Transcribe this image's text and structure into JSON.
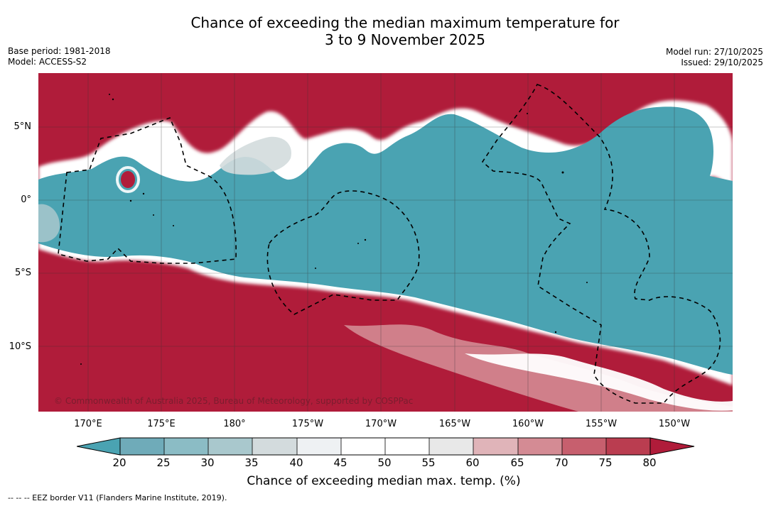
{
  "title": {
    "line1": "Chance of exceeding the median maximum temperature for",
    "line2": "3 to 9 November 2025"
  },
  "meta_left": {
    "base_period": "Base period: 1981-2018",
    "model": "Model: ACCESS-S2"
  },
  "meta_right": {
    "model_run": "Model run: 27/10/2025",
    "issued": "Issued: 29/10/2025"
  },
  "map": {
    "copyright": "© Commonwealth of Australia 2025, Bureau of Meteorology, supported by COSPPac",
    "lat_ticks": [
      "5°N",
      "0°",
      "5°S",
      "10°S"
    ],
    "lon_ticks": [
      "170°E",
      "175°E",
      "180°",
      "175°W",
      "170°W",
      "165°W",
      "160°W",
      "155°W",
      "150°W"
    ],
    "regions": {
      "equatorial_band": "below-median chance (teal)",
      "north_and_south": "above-median chance (red)"
    }
  },
  "colorbar": {
    "ticks": [
      "20",
      "25",
      "30",
      "35",
      "40",
      "45",
      "50",
      "55",
      "60",
      "65",
      "70",
      "75",
      "80"
    ],
    "colors": [
      "#4aa3b2",
      "#6fabb9",
      "#8bbcc5",
      "#a9c8cd",
      "#d3dbdd",
      "#eef1f3",
      "#ffffff",
      "#ffffff",
      "#e8e8e8",
      "#e0b4b9",
      "#d48b94",
      "#c75f6e",
      "#ba3d50",
      "#b01c3a"
    ],
    "label": "Chance of exceeding median max. temp. (%)"
  },
  "footnote": "--  --  -- EEZ border V11 (Flanders Marine Institute, 2019).",
  "colors": {
    "teal": "#4aa3b2",
    "red": "#b01c3a",
    "white": "#ffffff"
  }
}
